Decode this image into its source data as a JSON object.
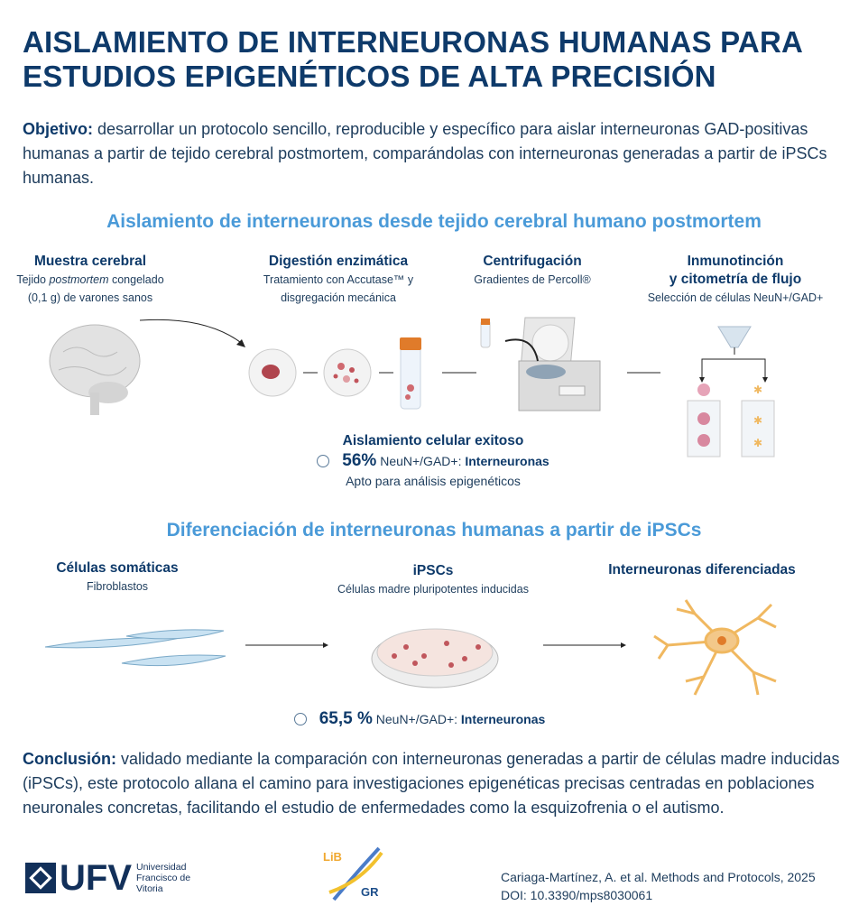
{
  "title": {
    "line1": "AISLAMIENTO DE INTERNEURONAS HUMANAS PARA",
    "line2": "ESTUDIOS EPIGENÉTICOS DE ALTA PRECISIÓN"
  },
  "objective": {
    "label": "Objetivo:",
    "text": " desarrollar un protocolo sencillo, reproducible y específico para aislar interneuronas GAD-positivas humanas a partir de tejido cerebral postmortem, comparándolas con interneuronas generadas a partir de iPSCs humanas."
  },
  "section1": {
    "heading": "Aislamiento de interneuronas desde tejido cerebral humano postmortem",
    "steps": [
      {
        "title": "Muestra cerebral",
        "sub_pre": "Tejido ",
        "sub_italic": "postmortem",
        "sub_post": " congelado",
        "sub2": "(0,1 g) de varones sanos"
      },
      {
        "title": "Digestión enzimática",
        "sub": "Tratamiento con Accutase™ y",
        "sub2": "disgregación mecánica"
      },
      {
        "title": "Centrifugación",
        "sub": "Gradientes de Percoll®"
      },
      {
        "title": "Inmunotinción",
        "title2": "y citometría de flujo",
        "sub": "Selección de células NeuN+/GAD+"
      }
    ],
    "result": {
      "heading": "Aislamiento celular exitoso",
      "percent": "56%",
      "marker": " NeuN+/GAD+: ",
      "cell": "Interneuronas",
      "note": "Apto para análisis epigenéticos"
    }
  },
  "section2": {
    "heading": "Diferenciación de interneuronas humanas a partir de iPSCs",
    "steps": [
      {
        "title": "Células somáticas",
        "sub": "Fibroblastos"
      },
      {
        "title": "iPSCs",
        "sub": "Células madre pluripotentes inducidas"
      },
      {
        "title": "Interneuronas diferenciadas"
      }
    ],
    "result": {
      "percent": "65,5 %",
      "marker": " NeuN+/GAD+: ",
      "cell": "Interneuronas"
    }
  },
  "conclusion": {
    "label": "Conclusión:",
    "text": " validado mediante la comparación con interneuronas generadas a partir de células madre inducidas (iPSCs), este protocolo allana el camino para investigaciones epigenéticas precisas centradas en poblaciones neuronales concretas, facilitando el estudio de enfermedades como la esquizofrenia o el autismo."
  },
  "footer": {
    "ufv_logo": "UFV",
    "ufv_name1": "Universidad",
    "ufv_name2": "Francisco de",
    "ufv_name3": "Vitoria",
    "lib_logo_top": "LiB",
    "lib_logo_bottom": "GR",
    "citation": "Cariaga-Martínez, A. et al. Methods and Protocols, 2025",
    "doi": "DOI: 10.3390/mps8030061"
  },
  "colors": {
    "title": "#0e3a6a",
    "heading": "#4a9ad8",
    "text": "#1d3c5c",
    "tissue": "#b0454e",
    "neuron": "#f0b860",
    "fibroblast": "#c9e2f2"
  }
}
